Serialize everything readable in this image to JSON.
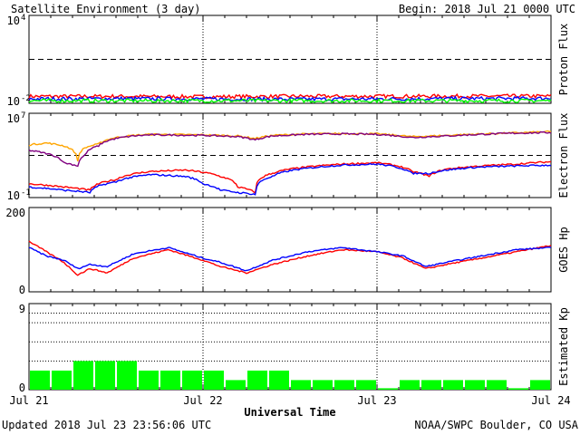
{
  "header": {
    "title": "Satellite Environment (3 day)",
    "begin": "Begin:  2018 Jul 21 0000 UTC"
  },
  "footer": {
    "updated": "Updated 2018 Jul 23 23:56:06 UTC",
    "credit": "NOAA/SWPC Boulder, CO USA",
    "xlabel": "Universal Time"
  },
  "chart_data": [
    {
      "name": "proton-flux",
      "type": "line",
      "ylabel": "Proton Flux",
      "yscale": "log",
      "ylim": [
        0.01,
        10000
      ],
      "yticks": [
        "10",
        "10"
      ],
      "yticks_exp": [
        "4",
        "-2"
      ],
      "threshold": 10,
      "series": [
        {
          "color": "#ff0000",
          "x": [
            0,
            0.5,
            1,
            1.5,
            2,
            2.5,
            3
          ],
          "y": [
            0.03,
            0.03,
            0.028,
            0.03,
            0.03,
            0.031,
            0.031
          ]
        },
        {
          "color": "#0000ff",
          "x": [
            0,
            0.5,
            1,
            1.5,
            2,
            2.5,
            3
          ],
          "y": [
            0.02,
            0.021,
            0.02,
            0.019,
            0.02,
            0.021,
            0.022
          ]
        },
        {
          "color": "#00ff00",
          "x": [
            0,
            0.5,
            1,
            1.5,
            2,
            2.5,
            3
          ],
          "y": [
            0.015,
            0.015,
            0.015,
            0.015,
            0.015,
            0.015,
            0.015
          ]
        }
      ]
    },
    {
      "name": "electron-flux",
      "type": "line",
      "ylabel": "Electron Flux",
      "yscale": "log",
      "ylim": [
        0.1,
        10000000
      ],
      "yticks": [
        "10",
        "10"
      ],
      "yticks_exp": [
        "7",
        "-1"
      ],
      "threshold": 1000,
      "series": [
        {
          "color": "#ffa500",
          "x": [
            0,
            0.1,
            0.2,
            0.28,
            0.32,
            0.4,
            0.5,
            0.6,
            0.7,
            1.0,
            1.2,
            1.3,
            1.4,
            1.6,
            1.8,
            2.0,
            2.2,
            2.4,
            2.6,
            2.8,
            3.0
          ],
          "y": [
            10000,
            15000,
            8000,
            300,
            5000,
            12000,
            50000,
            80000,
            100000,
            90000,
            70000,
            40000,
            80000,
            110000,
            120000,
            110000,
            60000,
            80000,
            110000,
            140000,
            180000
          ]
        },
        {
          "color": "#800080",
          "x": [
            0,
            0.1,
            0.2,
            0.28,
            0.32,
            0.4,
            0.5,
            0.6,
            0.7,
            1.0,
            1.2,
            1.3,
            1.4,
            1.6,
            1.8,
            2.0,
            2.2,
            2.4,
            2.6,
            2.8,
            3.0
          ],
          "y": [
            3000,
            1500,
            200,
            100,
            1000,
            8000,
            40000,
            70000,
            90000,
            80000,
            60000,
            30000,
            70000,
            100000,
            110000,
            100000,
            50000,
            70000,
            100000,
            130000,
            150000
          ]
        },
        {
          "color": "#ff0000",
          "x": [
            0,
            0.2,
            0.35,
            0.5,
            0.7,
            0.9,
            1.0,
            1.1,
            1.2,
            1.3,
            1.4,
            1.6,
            1.8,
            2.0,
            2.2,
            2.3,
            2.4,
            2.6,
            2.8,
            3.0
          ],
          "y": [
            2,
            1,
            0.5,
            5,
            30,
            40,
            25,
            10,
            1,
            0.3,
            20,
            80,
            150,
            200,
            30,
            10,
            50,
            100,
            150,
            250
          ]
        },
        {
          "color": "#0000ff",
          "x": [
            0,
            0.2,
            0.35,
            0.5,
            0.7,
            0.9,
            1.0,
            1.1,
            1.2,
            1.3,
            1.4,
            1.6,
            1.8,
            2.0,
            2.2,
            2.3,
            2.4,
            2.6,
            2.8,
            3.0
          ],
          "y": [
            1,
            0.5,
            0.3,
            3,
            15,
            10,
            2,
            0.5,
            0.3,
            0.2,
            10,
            60,
            120,
            150,
            20,
            20,
            40,
            80,
            100,
            120
          ]
        }
      ]
    },
    {
      "name": "goes-hp",
      "type": "line",
      "ylabel": "GOES Hp",
      "ylim": [
        0,
        200
      ],
      "yticks": [
        "200",
        "0"
      ],
      "series": [
        {
          "color": "#ff0000",
          "x": [
            0,
            0.1,
            0.2,
            0.28,
            0.35,
            0.45,
            0.6,
            0.8,
            1.0,
            1.1,
            1.25,
            1.4,
            1.6,
            1.8,
            2.0,
            2.15,
            2.28,
            2.4,
            2.6,
            2.8,
            3.0
          ],
          "y": [
            120,
            95,
            70,
            40,
            55,
            45,
            80,
            100,
            75,
            60,
            45,
            65,
            85,
            100,
            95,
            80,
            55,
            65,
            80,
            95,
            110
          ]
        },
        {
          "color": "#0000ff",
          "x": [
            0,
            0.1,
            0.2,
            0.28,
            0.35,
            0.45,
            0.6,
            0.8,
            1.0,
            1.1,
            1.25,
            1.4,
            1.6,
            1.8,
            2.0,
            2.15,
            2.28,
            2.4,
            2.6,
            2.8,
            3.0
          ],
          "y": [
            105,
            85,
            75,
            55,
            65,
            60,
            90,
            105,
            80,
            70,
            50,
            75,
            95,
            105,
            95,
            85,
            60,
            70,
            85,
            100,
            105
          ]
        }
      ]
    },
    {
      "name": "estimated-kp",
      "type": "bar",
      "ylabel": "Estimated Kp",
      "ylim": [
        0,
        9
      ],
      "yticks": [
        "9",
        "0"
      ],
      "color": "#00ff00",
      "values": [
        2,
        2,
        3,
        3,
        3,
        2,
        2,
        2,
        2,
        1,
        2,
        2,
        1,
        1,
        1,
        1,
        0,
        1,
        1,
        1,
        1,
        1,
        0,
        1
      ]
    }
  ],
  "xticks": [
    "Jul 21",
    "Jul 22",
    "Jul 23",
    "Jul 24"
  ]
}
